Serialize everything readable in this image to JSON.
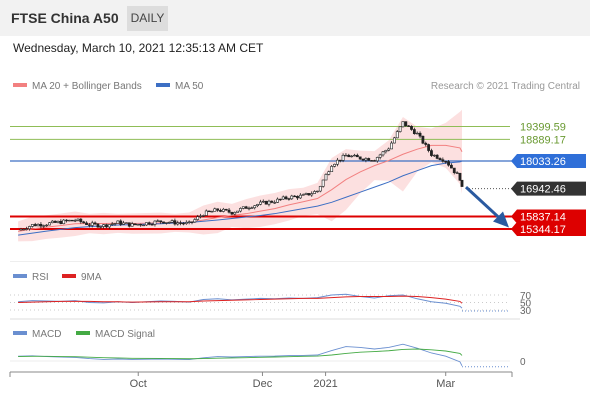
{
  "header": {
    "instrument": "FTSE China A50",
    "period": "DAILY",
    "datetime": "Wednesday, March 10, 2021 12:35:13 AM CET"
  },
  "legend": {
    "ma20": "MA 20 + Bollinger Bands",
    "ma50": "MA 50",
    "copyright": "Research © 2021 Trading Central",
    "rsi": "RSI",
    "rsi_ma": "9MA",
    "macd": "MACD",
    "macd_signal": "MACD Signal"
  },
  "colors": {
    "candle": "#222222",
    "ma20": "#f28080",
    "bollinger_fill": "#fbdada",
    "ma50": "#3d6fc4",
    "resistance": "#8fbd56",
    "pivot": "#3d6fc4",
    "support": "#dd0000",
    "arrow": "#2a5aa0",
    "rsi": "#6a8fd0",
    "rsi_ma": "#dd2222",
    "macd": "#6a8fd0",
    "macd_signal": "#44aa44"
  },
  "price_levels": [
    {
      "value": 19399.59,
      "label": "19399.59",
      "kind": "resistance"
    },
    {
      "value": 18889.17,
      "label": "18889.17",
      "kind": "resistance"
    },
    {
      "value": 18033.26,
      "label": "18033.26",
      "kind": "pivot"
    },
    {
      "value": 16942.46,
      "label": "16942.46",
      "kind": "last"
    },
    {
      "value": 15837.14,
      "label": "15837.14",
      "kind": "support"
    },
    {
      "value": 15344.17,
      "label": "15344.17",
      "kind": "support"
    }
  ],
  "rsi_levels": [
    "70",
    "50",
    "30"
  ],
  "macd_levels": [
    "0"
  ],
  "x_axis_labels": [
    "Oct",
    "Dec",
    "2021",
    "Mar"
  ],
  "chart_data": [
    {
      "type": "candlestick",
      "name": "FTSE China A50 daily",
      "x": [
        "2020-08-03",
        "2020-08-10",
        "2020-08-17",
        "2020-08-24",
        "2020-08-31",
        "2020-09-07",
        "2020-09-14",
        "2020-09-21",
        "2020-09-28",
        "2020-10-12",
        "2020-10-19",
        "2020-10-26",
        "2020-11-02",
        "2020-11-09",
        "2020-11-16",
        "2020-11-23",
        "2020-11-30",
        "2020-12-07",
        "2020-12-14",
        "2020-12-21",
        "2020-12-28",
        "2021-01-04",
        "2021-01-11",
        "2021-01-18",
        "2021-01-25",
        "2021-02-01",
        "2021-02-08",
        "2021-02-15",
        "2021-02-22",
        "2021-03-01",
        "2021-03-08",
        "2021-03-09"
      ],
      "close": [
        15300,
        15500,
        15550,
        15620,
        15700,
        15520,
        15480,
        15600,
        15500,
        15650,
        15600,
        15550,
        15950,
        16100,
        16000,
        16200,
        16350,
        16450,
        16600,
        16650,
        16850,
        17900,
        18250,
        18150,
        18100,
        18550,
        19550,
        19100,
        18300,
        18050,
        17350,
        16942
      ],
      "ma20": [
        15250,
        15350,
        15420,
        15480,
        15550,
        15560,
        15560,
        15570,
        15560,
        15580,
        15590,
        15600,
        15700,
        15800,
        15880,
        15950,
        16050,
        16150,
        16300,
        16420,
        16550,
        16900,
        17300,
        17600,
        17850,
        18050,
        18300,
        18500,
        18650,
        18650,
        18550,
        18400
      ],
      "ma50": [
        15100,
        15180,
        15260,
        15330,
        15400,
        15440,
        15470,
        15500,
        15520,
        15550,
        15580,
        15600,
        15650,
        15700,
        15760,
        15820,
        15880,
        15950,
        16050,
        16150,
        16250,
        16400,
        16600,
        16800,
        17000,
        17200,
        17450,
        17650,
        17850,
        17950,
        18000,
        18033
      ],
      "levels": [
        19399.59,
        18889.17,
        18033.26,
        15837.14,
        15344.17
      ],
      "ylim": [
        15000,
        20000
      ]
    },
    {
      "type": "line",
      "name": "RSI",
      "series": [
        {
          "name": "RSI",
          "values": [
            52,
            55,
            54,
            53,
            55,
            50,
            49,
            52,
            50,
            54,
            53,
            51,
            58,
            60,
            57,
            59,
            61,
            60,
            62,
            61,
            63,
            70,
            72,
            66,
            62,
            68,
            70,
            60,
            52,
            48,
            40,
            35
          ]
        },
        {
          "name": "9MA",
          "values": [
            50,
            51,
            52,
            53,
            53,
            53,
            52,
            52,
            51,
            52,
            52,
            52,
            54,
            55,
            56,
            57,
            58,
            59,
            60,
            61,
            61,
            63,
            65,
            66,
            66,
            66,
            67,
            66,
            63,
            59,
            53,
            48
          ]
        }
      ],
      "levels": [
        70,
        50,
        30
      ],
      "ylim": [
        20,
        80
      ]
    },
    {
      "type": "line",
      "name": "MACD",
      "series": [
        {
          "name": "MACD",
          "values": [
            60,
            65,
            55,
            50,
            45,
            30,
            20,
            25,
            20,
            25,
            22,
            18,
            40,
            55,
            50,
            55,
            60,
            62,
            68,
            70,
            75,
            130,
            180,
            170,
            150,
            170,
            210,
            160,
            100,
            60,
            -10,
            -60
          ]
        },
        {
          "name": "MACD Signal",
          "values": [
            55,
            58,
            58,
            56,
            54,
            48,
            42,
            38,
            34,
            32,
            30,
            28,
            30,
            35,
            38,
            42,
            46,
            50,
            54,
            58,
            62,
            75,
            95,
            110,
            118,
            128,
            145,
            150,
            140,
            125,
            95,
            70
          ]
        }
      ],
      "levels": [
        0
      ],
      "ylim": [
        -80,
        260
      ]
    }
  ]
}
